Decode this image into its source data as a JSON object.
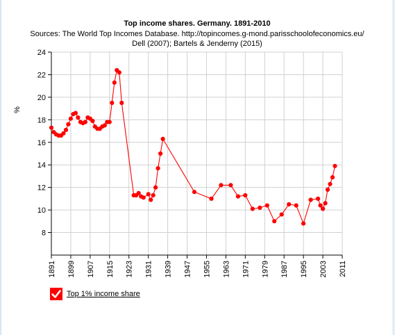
{
  "chart_data": {
    "type": "line",
    "title": "Top income shares. Germany. 1891-2010",
    "subtitle_lines": [
      "Sources: The World Top Incomes Database. http://topincomes.g-mond.parisschoolofeconomics.eu/",
      "Dell (2007); Bartels & Jenderny (2015)"
    ],
    "ylabel": "%",
    "xlabel": "",
    "xlim": [
      1891,
      2011
    ],
    "ylim": [
      6,
      24
    ],
    "yticks": [
      8,
      10,
      12,
      14,
      16,
      18,
      20,
      22,
      24
    ],
    "xticks": [
      1891,
      1899,
      1907,
      1915,
      1923,
      1931,
      1939,
      1947,
      1955,
      1963,
      1971,
      1979,
      1987,
      1995,
      2003,
      2011
    ],
    "grid": true,
    "legend_position": "bottom-left",
    "series": [
      {
        "name": "Top 1% income share",
        "color": "#ff0000",
        "points": [
          [
            1891,
            17.3
          ],
          [
            1892,
            16.9
          ],
          [
            1893,
            16.7
          ],
          [
            1894,
            16.6
          ],
          [
            1895,
            16.6
          ],
          [
            1896,
            16.8
          ],
          [
            1897,
            17.1
          ],
          [
            1898,
            17.6
          ],
          [
            1899,
            18.1
          ],
          [
            1900,
            18.5
          ],
          [
            1901,
            18.6
          ],
          [
            1902,
            18.2
          ],
          [
            1903,
            17.8
          ],
          [
            1904,
            17.7
          ],
          [
            1905,
            17.8
          ],
          [
            1906,
            18.2
          ],
          [
            1907,
            18.1
          ],
          [
            1908,
            17.9
          ],
          [
            1909,
            17.4
          ],
          [
            1910,
            17.2
          ],
          [
            1911,
            17.2
          ],
          [
            1912,
            17.4
          ],
          [
            1913,
            17.5
          ],
          [
            1914,
            17.8
          ],
          [
            1915,
            17.8
          ],
          [
            1916,
            19.5
          ],
          [
            1917,
            21.3
          ],
          [
            1918,
            22.4
          ],
          [
            1919,
            22.2
          ],
          [
            1920,
            19.5
          ],
          [
            1925,
            11.3
          ],
          [
            1926,
            11.3
          ],
          [
            1927,
            11.5
          ],
          [
            1928,
            11.2
          ],
          [
            1929,
            11.1
          ],
          [
            1931,
            11.4
          ],
          [
            1932,
            10.9
          ],
          [
            1933,
            11.3
          ],
          [
            1934,
            12.0
          ],
          [
            1935,
            13.7
          ],
          [
            1936,
            15.0
          ],
          [
            1937,
            16.3
          ],
          [
            1950,
            11.6
          ],
          [
            1957,
            11.0
          ],
          [
            1961,
            12.2
          ],
          [
            1965,
            12.2
          ],
          [
            1968,
            11.2
          ],
          [
            1971,
            11.3
          ],
          [
            1974,
            10.1
          ],
          [
            1977,
            10.2
          ],
          [
            1980,
            10.4
          ],
          [
            1983,
            9.0
          ],
          [
            1986,
            9.6
          ],
          [
            1989,
            10.5
          ],
          [
            1992,
            10.4
          ],
          [
            1995,
            8.8
          ],
          [
            1998,
            10.9
          ],
          [
            2001,
            11.0
          ],
          [
            2002,
            10.4
          ],
          [
            2003,
            10.1
          ],
          [
            2004,
            10.6
          ],
          [
            2005,
            11.8
          ],
          [
            2006,
            12.3
          ],
          [
            2007,
            12.9
          ],
          [
            2008,
            13.9
          ]
        ]
      }
    ]
  },
  "legend": {
    "items": [
      {
        "label": "Top 1% income share",
        "checked": true,
        "color": "#ff0000"
      }
    ]
  }
}
